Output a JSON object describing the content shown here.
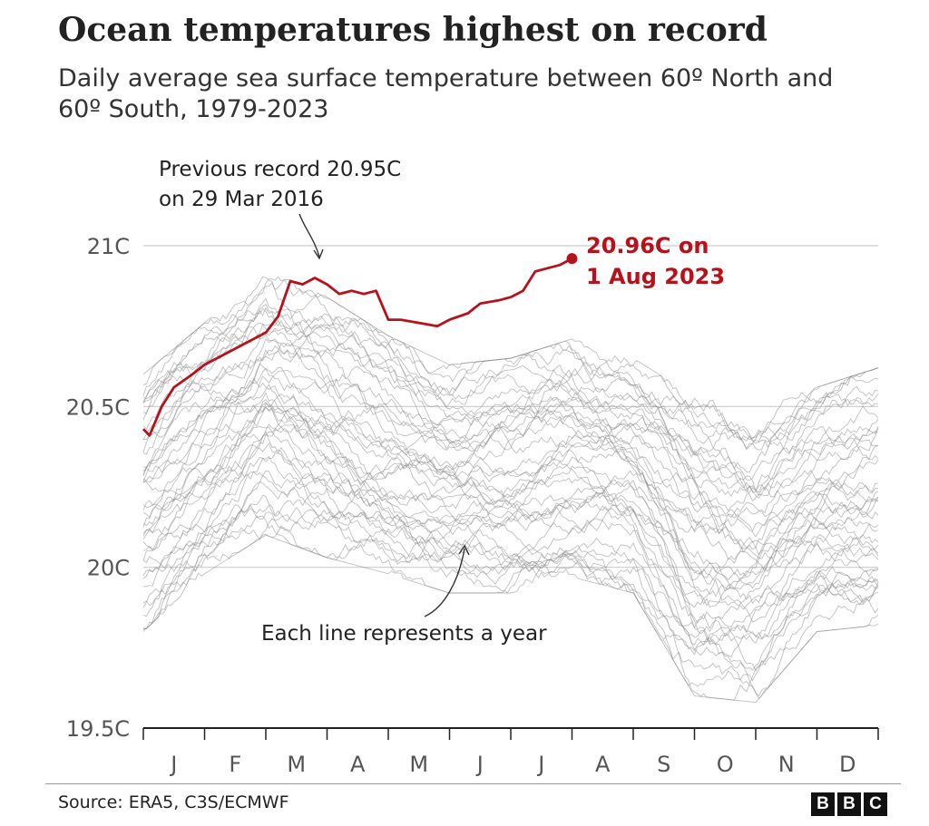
{
  "header": {
    "title": "Ocean temperatures highest on record",
    "subtitle": "Daily average sea surface temperature between 60º North and 60º South, 1979-2023"
  },
  "footer": {
    "source": "Source: ERA5, C3S/ECMWF",
    "logo_letters": [
      "B",
      "B",
      "C"
    ]
  },
  "colors": {
    "highlight": "#b5121b",
    "background_years": "#8c8c8c",
    "grid": "#cccccc"
  },
  "chart_data": {
    "type": "line",
    "title": "Ocean temperatures highest on record",
    "subtitle": "Daily average sea surface temperature between 60º North and 60º South, 1979-2023",
    "x_ticks": [
      "J",
      "F",
      "M",
      "A",
      "M",
      "J",
      "J",
      "A",
      "S",
      "O",
      "N",
      "D"
    ],
    "y_ticks": [
      {
        "value": 21.0,
        "label": "21C"
      },
      {
        "value": 20.5,
        "label": "20.5C"
      },
      {
        "value": 20.0,
        "label": "20C"
      },
      {
        "value": 19.5,
        "label": "19.5C"
      }
    ],
    "ylim": [
      19.5,
      21.0
    ],
    "grid": true,
    "background_series_count": 44,
    "background_envelope": {
      "x_month": [
        0,
        1,
        2,
        3,
        4,
        5,
        6,
        7,
        8,
        9,
        10,
        11,
        12
      ],
      "max": [
        20.6,
        20.76,
        20.93,
        20.84,
        20.72,
        20.63,
        20.65,
        20.71,
        20.65,
        20.53,
        20.5,
        20.56,
        20.62
      ],
      "min": [
        19.8,
        19.98,
        20.1,
        20.03,
        19.98,
        19.92,
        19.92,
        19.97,
        19.92,
        19.6,
        19.58,
        19.8,
        19.82
      ]
    },
    "highlight_series": {
      "year": "2023",
      "x_month": [
        0,
        0.1,
        0.3,
        0.5,
        0.8,
        1.0,
        1.3,
        1.5,
        1.8,
        2.0,
        2.2,
        2.4,
        2.6,
        2.8,
        3.0,
        3.2,
        3.4,
        3.6,
        3.8,
        4.0,
        4.2,
        4.5,
        4.8,
        5.0,
        5.3,
        5.5,
        5.8,
        6.0,
        6.2,
        6.4,
        6.6,
        6.8,
        7.0
      ],
      "values": [
        20.43,
        20.41,
        20.5,
        20.56,
        20.6,
        20.63,
        20.66,
        20.68,
        20.71,
        20.73,
        20.78,
        20.89,
        20.88,
        20.9,
        20.88,
        20.85,
        20.86,
        20.85,
        20.86,
        20.77,
        20.77,
        20.76,
        20.75,
        20.77,
        20.79,
        20.82,
        20.83,
        20.84,
        20.86,
        20.92,
        20.93,
        20.94,
        20.96
      ]
    },
    "annotations": {
      "record_2023_line1": "20.96C on",
      "record_2023_line2": "1 Aug 2023",
      "previous_record_line1": "Previous record 20.95C",
      "previous_record_line2": "on 29 Mar 2016",
      "each_line": "Each line represents a year"
    }
  }
}
